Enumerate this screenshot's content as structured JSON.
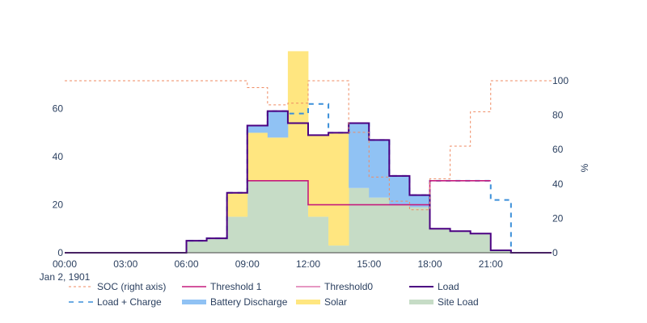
{
  "chart_data": {
    "type": "area",
    "x": [
      "00:00",
      "01:00",
      "02:00",
      "03:00",
      "04:00",
      "05:00",
      "06:00",
      "07:00",
      "08:00",
      "09:00",
      "10:00",
      "11:00",
      "12:00",
      "13:00",
      "14:00",
      "15:00",
      "16:00",
      "17:00",
      "18:00",
      "19:00",
      "20:00",
      "21:00",
      "22:00",
      "23:00"
    ],
    "x_tick_labels": [
      "00:00",
      "03:00",
      "06:00",
      "09:00",
      "12:00",
      "15:00",
      "18:00",
      "21:00"
    ],
    "x_date_label": "Jan 2, 1901",
    "y_tick_labels": [
      "0",
      "20",
      "40",
      "60"
    ],
    "ylim": [
      0,
      70
    ],
    "y2label": "%",
    "y2_tick_labels": [
      "0",
      "20",
      "40",
      "60",
      "80",
      "100"
    ],
    "y2lim": [
      0,
      100
    ],
    "line_shape": "step",
    "grid": false,
    "legend_placement": "bottom",
    "series": [
      {
        "name": "SOC (right axis)",
        "axis": "right",
        "kind": "line",
        "dash": "dot",
        "color": "#ef8a62",
        "values": [
          100,
          100,
          100,
          100,
          100,
          100,
          100,
          100,
          100,
          96,
          86,
          87,
          100,
          100,
          70,
          44,
          30,
          25,
          43,
          62,
          82,
          100,
          100,
          100
        ]
      },
      {
        "name": "Threshold 1",
        "kind": "line",
        "color": "#c51b7d",
        "values": [
          null,
          null,
          null,
          null,
          null,
          null,
          null,
          null,
          null,
          30,
          30,
          30,
          20,
          20,
          20,
          20,
          20,
          20,
          30,
          30,
          30,
          null,
          null,
          null
        ]
      },
      {
        "name": "Threshold0",
        "kind": "line",
        "color": "#de77ae",
        "values": [
          null,
          null,
          null,
          null,
          null,
          null,
          null,
          null,
          null,
          null,
          null,
          null,
          null,
          null,
          null,
          null,
          null,
          null,
          null,
          null,
          null,
          null,
          null,
          null
        ]
      },
      {
        "name": "Load",
        "kind": "line",
        "color": "#4b0082",
        "values": [
          0,
          0,
          0,
          0,
          0,
          0,
          5,
          6,
          25,
          53,
          59,
          54,
          49,
          50,
          54,
          47,
          32,
          24,
          10,
          9,
          8,
          1,
          0,
          0
        ]
      },
      {
        "name": "Load + Charge",
        "kind": "line",
        "dash": "dash",
        "color": "#3b8fd9",
        "values": [
          0,
          0,
          0,
          0,
          0,
          0,
          5,
          6,
          25,
          53,
          59,
          58,
          62,
          50,
          54,
          47,
          32,
          24,
          30,
          30,
          30,
          22,
          0,
          0
        ]
      },
      {
        "name": "Battery Discharge",
        "kind": "stack",
        "color": "#90c2f4",
        "values": [
          0,
          0,
          0,
          0,
          0,
          0,
          0,
          0,
          0,
          3,
          11,
          0,
          0,
          0,
          27,
          24,
          12,
          5,
          0,
          0,
          0,
          0,
          0,
          0
        ]
      },
      {
        "name": "Solar",
        "kind": "stack",
        "color": "#ffe680",
        "values": [
          0,
          0,
          0,
          0,
          0,
          0,
          0,
          0,
          10,
          20,
          18,
          54,
          34,
          47,
          0,
          0,
          0,
          0,
          0,
          0,
          0,
          0,
          0,
          0
        ]
      },
      {
        "name": "Site Load",
        "kind": "stack",
        "color": "#c6dcc6",
        "values": [
          0,
          0,
          0,
          0,
          0,
          0,
          5,
          6,
          15,
          30,
          30,
          30,
          15,
          3,
          27,
          23,
          20,
          19,
          10,
          9,
          8,
          1,
          0,
          0
        ]
      }
    ]
  }
}
